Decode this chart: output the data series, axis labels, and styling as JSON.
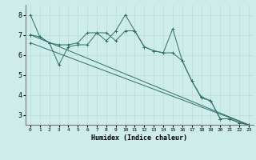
{
  "title": "",
  "xlabel": "Humidex (Indice chaleur)",
  "ylabel": "",
  "background_color": "#ceecea",
  "grid_color": "#b8dbd9",
  "line_color": "#2d7068",
  "xlim": [
    -0.5,
    23.5
  ],
  "ylim": [
    2.5,
    8.5
  ],
  "yticks": [
    3,
    4,
    5,
    6,
    7,
    8
  ],
  "xticks": [
    0,
    1,
    2,
    3,
    4,
    5,
    6,
    7,
    8,
    9,
    10,
    11,
    12,
    13,
    14,
    15,
    16,
    17,
    18,
    19,
    20,
    21,
    22,
    23
  ],
  "series1_x": [
    0,
    1,
    2,
    3,
    4,
    5,
    6,
    7,
    8,
    9,
    10,
    11,
    12,
    13,
    14,
    15,
    16,
    17,
    18,
    19,
    20,
    21,
    22,
    23
  ],
  "series1_y": [
    8.0,
    6.9,
    6.6,
    6.5,
    6.5,
    6.6,
    7.1,
    7.1,
    6.7,
    7.2,
    8.0,
    7.2,
    6.4,
    6.2,
    6.1,
    7.3,
    5.7,
    4.7,
    3.9,
    3.7,
    2.8,
    2.8,
    2.6,
    2.5
  ],
  "series2_x": [
    0,
    1,
    2,
    3,
    4,
    5,
    6,
    7,
    8,
    9,
    10,
    11,
    12,
    13,
    14,
    15,
    16,
    17,
    18,
    19,
    20,
    21,
    22,
    23
  ],
  "series2_y": [
    7.0,
    6.9,
    6.6,
    5.5,
    6.4,
    6.5,
    6.5,
    7.1,
    7.1,
    6.7,
    7.2,
    7.2,
    6.4,
    6.2,
    6.1,
    6.1,
    5.7,
    4.7,
    3.85,
    3.7,
    2.8,
    2.8,
    2.6,
    2.5
  ],
  "line1_x": [
    0,
    23
  ],
  "line1_y": [
    7.0,
    2.5
  ],
  "line2_x": [
    0,
    23
  ],
  "line2_y": [
    6.6,
    2.5
  ],
  "marker": "+"
}
